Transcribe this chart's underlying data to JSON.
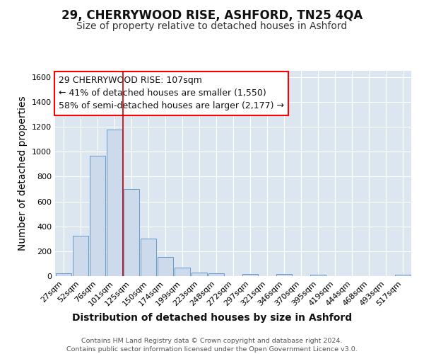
{
  "title": "29, CHERRYWOOD RISE, ASHFORD, TN25 4QA",
  "subtitle": "Size of property relative to detached houses in Ashford",
  "xlabel": "Distribution of detached houses by size in Ashford",
  "ylabel": "Number of detached properties",
  "footnote1": "Contains HM Land Registry data © Crown copyright and database right 2024.",
  "footnote2": "Contains public sector information licensed under the Open Government Licence v3.0.",
  "bar_labels": [
    "27sqm",
    "52sqm",
    "76sqm",
    "101sqm",
    "125sqm",
    "150sqm",
    "174sqm",
    "199sqm",
    "223sqm",
    "248sqm",
    "272sqm",
    "297sqm",
    "321sqm",
    "346sqm",
    "370sqm",
    "395sqm",
    "419sqm",
    "444sqm",
    "468sqm",
    "493sqm",
    "517sqm"
  ],
  "bar_values": [
    25,
    325,
    970,
    1180,
    700,
    300,
    155,
    70,
    30,
    25,
    2,
    15,
    2,
    15,
    2,
    10,
    2,
    2,
    2,
    2,
    10
  ],
  "bar_color": "#ccdaeb",
  "bar_edge_color": "#6699cc",
  "bg_color": "#dce6f0",
  "grid_color": "#ffffff",
  "ylim": [
    0,
    1650
  ],
  "yticks": [
    0,
    200,
    400,
    600,
    800,
    1000,
    1200,
    1400,
    1600
  ],
  "property_label": "29 CHERRYWOOD RISE: 107sqm",
  "annotation_line1": "← 41% of detached houses are smaller (1,550)",
  "annotation_line2": "58% of semi-detached houses are larger (2,177) →",
  "vline_color": "#cc0000",
  "vline_position": 3.5,
  "title_fontsize": 12,
  "subtitle_fontsize": 10,
  "axis_label_fontsize": 10,
  "tick_fontsize": 8,
  "annot_fontsize": 9
}
